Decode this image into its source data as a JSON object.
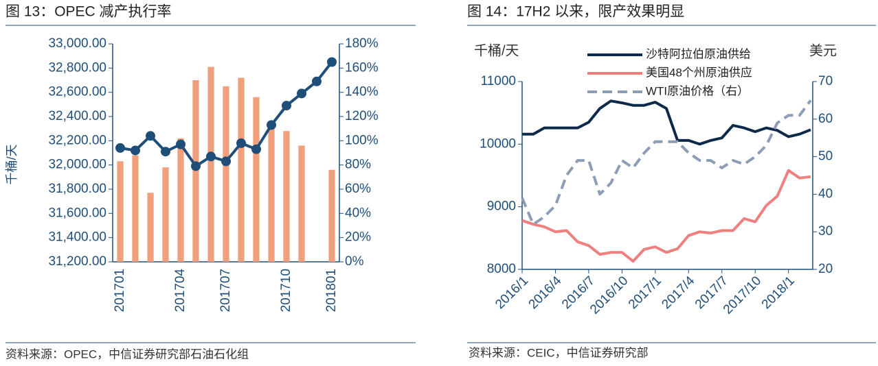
{
  "chart_data": [
    {
      "type": "bar",
      "title": "图 13：OPEC 减产执行率",
      "y_label": "千桶/天",
      "source": "资料来源：OPEC，中信证券研究部石油石化组",
      "categories": [
        "201701",
        null,
        null,
        null,
        "201704",
        null,
        null,
        "201707",
        null,
        null,
        null,
        "201710",
        null,
        null,
        "201801"
      ],
      "series": [
        {
          "type": "bar",
          "color": "#f0a07c",
          "values": [
            32030,
            32080,
            31770,
            31980,
            32220,
            32700,
            32810,
            32650,
            32720,
            32560,
            32300,
            32280,
            32160,
            null,
            31960
          ]
        },
        {
          "type": "line",
          "color": "#1f4e79",
          "axis": "y2",
          "marker": true,
          "values": [
            94,
            92,
            104,
            91,
            97,
            79,
            87,
            83,
            98,
            93,
            113,
            129,
            139,
            149,
            165
          ]
        }
      ],
      "ylim": [
        31200,
        33000
      ],
      "yticks": [
        {
          "value": 31200,
          "label": "31,200.00"
        },
        {
          "value": 31400,
          "label": "31,400.00"
        },
        {
          "value": 31600,
          "label": "31,600.00"
        },
        {
          "value": 31800,
          "label": "31,800.00"
        },
        {
          "value": 32000,
          "label": "32,000.00"
        },
        {
          "value": 32200,
          "label": "32,200.00"
        },
        {
          "value": 32400,
          "label": "32,400.00"
        },
        {
          "value": 32600,
          "label": "32,600.00"
        },
        {
          "value": 32800,
          "label": "32,800.00"
        },
        {
          "value": 33000,
          "label": "33,000.00"
        }
      ],
      "y2lim": [
        0,
        180
      ],
      "y2ticks": [
        {
          "value": 0,
          "label": "0%"
        },
        {
          "value": 20,
          "label": "20%"
        },
        {
          "value": 40,
          "label": "40%"
        },
        {
          "value": 60,
          "label": "60%"
        },
        {
          "value": 80,
          "label": "80%"
        },
        {
          "value": 100,
          "label": "100%"
        },
        {
          "value": 120,
          "label": "120%"
        },
        {
          "value": 140,
          "label": "140%"
        },
        {
          "value": 160,
          "label": "160%"
        },
        {
          "value": 180,
          "label": "180%"
        }
      ]
    },
    {
      "type": "line",
      "title": "图 14：17H2 以来，限产效果明显",
      "y_label": "千桶/天",
      "y2_label": "美元",
      "source": "资料来源：CEIC，中信证券研究部",
      "categories": [
        "2016/1",
        null,
        null,
        "2016/4",
        null,
        null,
        "2016/7",
        null,
        null,
        "2016/10",
        null,
        null,
        "2017/1",
        null,
        null,
        "2017/4",
        null,
        null,
        "2017/7",
        null,
        null,
        "2017/10",
        null,
        null,
        "2018/1",
        null,
        null
      ],
      "series": [
        {
          "name": "沙特阿拉伯原油供给",
          "color": "#0d2a4a",
          "values": [
            10160,
            10160,
            10260,
            10260,
            10260,
            10260,
            10350,
            10570,
            10690,
            10660,
            10620,
            10620,
            10670,
            10570,
            10060,
            10060,
            10000,
            10060,
            10100,
            10300,
            10260,
            10200,
            10260,
            10220,
            10120,
            10160,
            10230
          ]
        },
        {
          "name": "美国48个州原油供应",
          "color": "#f08080",
          "values": [
            8780,
            8720,
            8680,
            8600,
            8620,
            8440,
            8380,
            8240,
            8270,
            8270,
            8130,
            8320,
            8360,
            8270,
            8330,
            8540,
            8600,
            8580,
            8620,
            8620,
            8810,
            8760,
            9020,
            9170,
            9580,
            9460,
            9480
          ]
        },
        {
          "name": "WTI原油价格（右）",
          "color": "#8c9db5",
          "axis": "y2",
          "dash": true,
          "values": [
            39,
            32,
            34,
            37,
            45,
            49,
            49,
            40,
            43,
            49,
            47,
            51,
            54,
            54,
            54,
            51,
            49,
            49,
            47,
            49,
            48,
            50,
            53,
            59,
            61,
            61,
            65
          ]
        }
      ],
      "ylim": [
        8000,
        11000
      ],
      "yticks": [
        8000,
        9000,
        10000,
        11000
      ],
      "y2lim": [
        20,
        70
      ],
      "y2ticks": [
        20,
        30,
        40,
        50,
        60,
        70
      ]
    }
  ]
}
